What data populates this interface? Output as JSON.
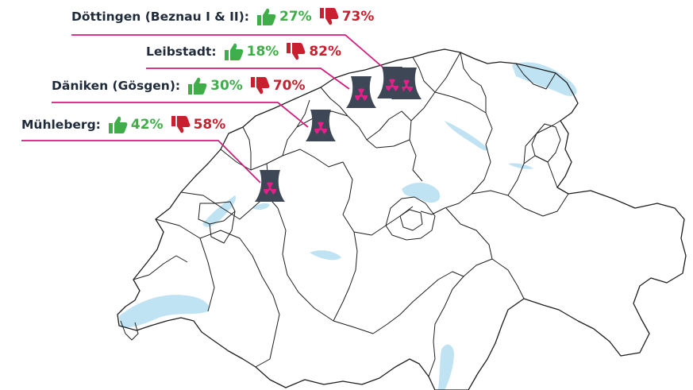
{
  "plants": [
    {
      "name": "Döttingen (Beznau I & II):",
      "yes": "27%",
      "no": "73%"
    },
    {
      "name": "Leibstadt:",
      "yes": "18%",
      "no": "82%"
    },
    {
      "name": "Däniken (Gösgen):",
      "yes": "30%",
      "no": "70%"
    },
    {
      "name": "Mühleberg:",
      "yes": "42%",
      "no": "58%"
    }
  ],
  "colors": {
    "yes": "#3fae49",
    "no": "#c8202f",
    "leader_line": "#d6197c",
    "tower": "#3d4756",
    "radiation_symbol": "#e0218a",
    "lakes": "#bfe3f3",
    "borders": "#1e1e1e"
  },
  "icons": [
    "thumbs-up-icon",
    "thumbs-down-icon",
    "cooling-tower-icon"
  ]
}
